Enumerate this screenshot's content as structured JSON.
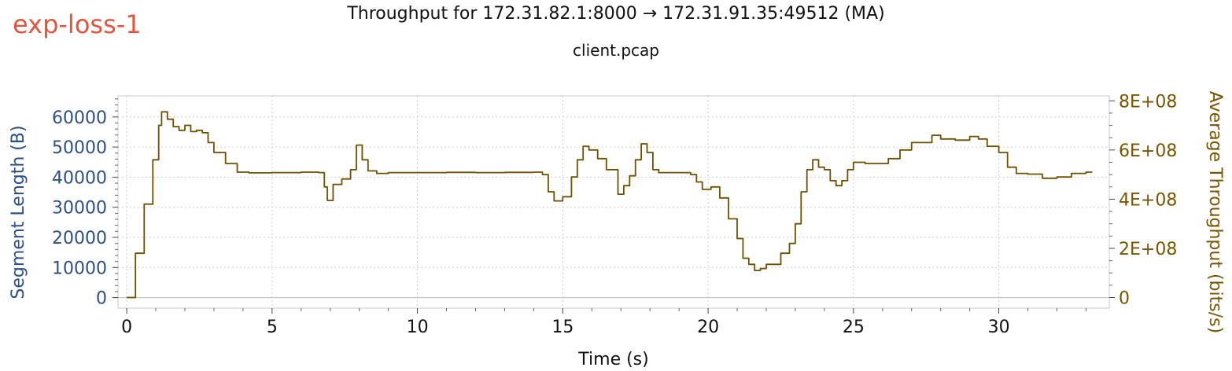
{
  "window": {
    "tag": "exp-loss-1",
    "title": "Throughput for 172.31.82.1:8000 → 172.31.91.35:49512 (MA)",
    "subtitle": "client.pcap"
  },
  "colors": {
    "left_axis": "#2c4f86",
    "right_axis": "#7a5500",
    "series": "#6f4f00",
    "grid": "#cfcfcf",
    "tag": "#e5533d"
  },
  "chart_data": {
    "type": "line",
    "title": "Throughput for 172.31.82.1:8000 → 172.31.91.35:49512 (MA)",
    "subtitle": "client.pcap",
    "xlabel": "Time (s)",
    "ylabel_left": "Segment Length (B)",
    "ylabel_right": "Average Throughput (bits/s)",
    "xlim": [
      -0.3,
      33.8
    ],
    "ylim_left": [
      -3500,
      67000
    ],
    "ylim_right": [
      -43000000,
      820000000
    ],
    "x_ticks": [
      0,
      5,
      10,
      15,
      20,
      25,
      30
    ],
    "x_tick_labels": [
      "0",
      "5",
      "10",
      "15",
      "20",
      "25",
      "30"
    ],
    "y_left_ticks": [
      0,
      10000,
      20000,
      30000,
      40000,
      50000,
      60000
    ],
    "y_left_tick_labels": [
      "0",
      "10000",
      "20000",
      "30000",
      "40000",
      "50000",
      "60000"
    ],
    "y_right_ticks": [
      0,
      200000000,
      400000000,
      600000000,
      800000000
    ],
    "y_right_tick_labels": [
      "0",
      "2E+08",
      "4E+08",
      "6E+08",
      "8E+08"
    ],
    "grid": true,
    "series": [
      {
        "axis": "right",
        "x": [
          0,
          0.3,
          0.6,
          0.9,
          1.1,
          1.2,
          1.4,
          1.6,
          1.8,
          2.0,
          2.2,
          2.4,
          2.6,
          2.8,
          3.0,
          3.4,
          3.8,
          4.2,
          5.0,
          6.0,
          6.6,
          6.8,
          6.9,
          7.1,
          7.4,
          7.7,
          7.9,
          8.1,
          8.3,
          8.6,
          9.0,
          10.0,
          11.0,
          12.0,
          13.0,
          14.0,
          14.3,
          14.5,
          14.7,
          15.0,
          15.3,
          15.5,
          15.7,
          15.9,
          16.2,
          16.5,
          16.9,
          17.1,
          17.3,
          17.5,
          17.7,
          17.9,
          18.1,
          18.3,
          18.7,
          19.0,
          19.4,
          19.6,
          19.8,
          20.1,
          20.4,
          20.7,
          21.0,
          21.2,
          21.4,
          21.6,
          21.8,
          22.0,
          22.5,
          22.8,
          23.0,
          23.2,
          23.4,
          23.6,
          23.8,
          24.0,
          24.2,
          24.4,
          24.6,
          24.8,
          25.0,
          25.4,
          25.8,
          26.2,
          26.6,
          27.0,
          27.4,
          27.7,
          28.0,
          28.5,
          29.0,
          29.3,
          29.6,
          30.0,
          30.3,
          30.6,
          31.0,
          31.5,
          32.0,
          32.5,
          33.0,
          33.2
        ],
        "y": [
          0,
          180000000,
          380000000,
          560000000,
          700000000,
          755000000,
          725000000,
          695000000,
          680000000,
          700000000,
          675000000,
          680000000,
          670000000,
          630000000,
          590000000,
          545000000,
          510000000,
          507000000,
          508000000,
          510000000,
          508000000,
          450000000,
          395000000,
          460000000,
          482000000,
          520000000,
          620000000,
          560000000,
          515000000,
          505000000,
          508000000,
          508000000,
          509000000,
          508000000,
          509000000,
          510000000,
          500000000,
          430000000,
          393000000,
          410000000,
          490000000,
          560000000,
          615000000,
          600000000,
          565000000,
          520000000,
          420000000,
          455000000,
          495000000,
          560000000,
          625000000,
          590000000,
          520000000,
          508000000,
          508000000,
          508000000,
          500000000,
          470000000,
          440000000,
          450000000,
          405000000,
          320000000,
          240000000,
          160000000,
          135000000,
          110000000,
          118000000,
          135000000,
          180000000,
          220000000,
          300000000,
          430000000,
          520000000,
          560000000,
          530000000,
          520000000,
          475000000,
          455000000,
          475000000,
          520000000,
          550000000,
          545000000,
          545000000,
          565000000,
          600000000,
          630000000,
          630000000,
          660000000,
          645000000,
          640000000,
          655000000,
          645000000,
          615000000,
          590000000,
          530000000,
          505000000,
          502000000,
          485000000,
          490000000,
          505000000,
          510000000,
          508000000
        ]
      }
    ]
  }
}
